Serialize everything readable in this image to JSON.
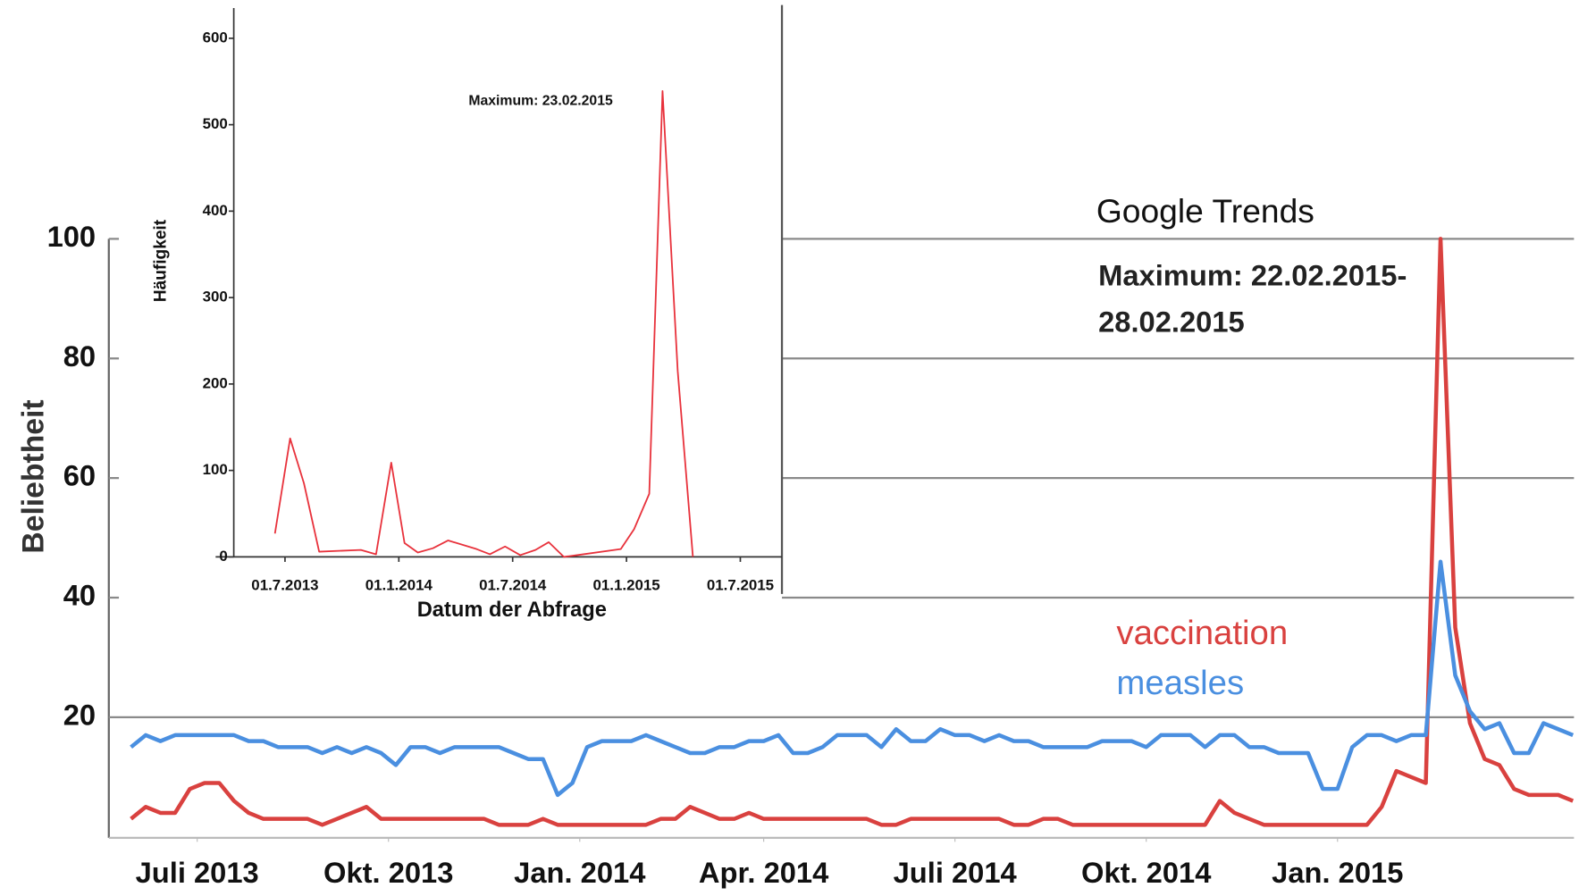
{
  "chart_data": [
    {
      "type": "line",
      "y_label": "Beliebtheit",
      "annotations": [
        "Google Trends",
        "Maximum: 22.02.2015-",
        "28.02.2015"
      ],
      "xlim": [
        0,
        98
      ],
      "xticks": [
        {
          "value": 4.5,
          "label": "Juli 2013"
        },
        {
          "value": 17.5,
          "label": "Okt. 2013"
        },
        {
          "value": 30.5,
          "label": "Jan. 2014"
        },
        {
          "value": 43,
          "label": "Apr. 2014"
        },
        {
          "value": 56,
          "label": "Juli 2014"
        },
        {
          "value": 69,
          "label": "Okt. 2014"
        },
        {
          "value": 82,
          "label": "Jan. 2015"
        }
      ],
      "ylim": [
        0,
        100
      ],
      "yticks": [
        20,
        40,
        60,
        80,
        100
      ],
      "grid": true,
      "series": [
        {
          "name": "vaccination",
          "color": "#d9413f",
          "values": [
            3,
            5,
            4,
            4,
            8,
            9,
            9,
            6,
            4,
            3,
            3,
            3,
            3,
            2,
            3,
            4,
            5,
            3,
            3,
            3,
            3,
            3,
            3,
            3,
            3,
            2,
            2,
            2,
            3,
            2,
            2,
            2,
            2,
            2,
            2,
            2,
            3,
            3,
            5,
            4,
            3,
            3,
            4,
            3,
            3,
            3,
            3,
            3,
            3,
            3,
            3,
            2,
            2,
            3,
            3,
            3,
            3,
            3,
            3,
            3,
            2,
            2,
            3,
            3,
            2,
            2,
            2,
            2,
            2,
            2,
            2,
            2,
            2,
            2,
            6,
            4,
            3,
            2,
            2,
            2,
            2,
            2,
            2,
            2,
            2,
            5,
            11,
            10,
            9,
            100,
            35,
            19,
            13,
            12,
            8,
            7,
            7,
            7,
            6
          ]
        },
        {
          "name": "measles",
          "color": "#4a8fe0",
          "values": [
            15,
            17,
            16,
            17,
            17,
            17,
            17,
            17,
            16,
            16,
            15,
            15,
            15,
            14,
            15,
            14,
            15,
            14,
            12,
            15,
            15,
            14,
            15,
            15,
            15,
            15,
            14,
            13,
            13,
            7,
            9,
            15,
            16,
            16,
            16,
            17,
            16,
            15,
            14,
            14,
            15,
            15,
            16,
            16,
            17,
            14,
            14,
            15,
            17,
            17,
            17,
            15,
            18,
            16,
            16,
            18,
            17,
            17,
            16,
            17,
            16,
            16,
            15,
            15,
            15,
            15,
            16,
            16,
            16,
            15,
            17,
            17,
            17,
            15,
            17,
            17,
            15,
            15,
            14,
            14,
            14,
            8,
            8,
            15,
            17,
            17,
            16,
            17,
            17,
            46,
            27,
            21,
            18,
            19,
            14,
            14,
            19,
            18,
            17
          ]
        }
      ]
    },
    {
      "type": "line",
      "x_label": "Datum der Abfrage",
      "y_label": "Häufigkeit",
      "annotations": [
        "Maximum: 23.02.2015"
      ],
      "x": [
        -0.53,
        0.27,
        1.0,
        1.8,
        4.0,
        4.8,
        5.6,
        6.3,
        7.0,
        7.8,
        8.6,
        10.1,
        10.8,
        11.6,
        12.4,
        13.2,
        13.9,
        14.7,
        15.4,
        17.7,
        18.4,
        19.2,
        19.9,
        20.7,
        21.5
      ],
      "xlim": [
        -2.7,
        26.3
      ],
      "xticks": [
        {
          "value": 0,
          "label": "01.7.2013"
        },
        {
          "value": 6,
          "label": "01.1.2014"
        },
        {
          "value": 12,
          "label": "01.7.2014"
        },
        {
          "value": 18,
          "label": "01.1.2015"
        },
        {
          "value": 24,
          "label": "01.7.2015"
        }
      ],
      "ylim": [
        0,
        635
      ],
      "yticks": [
        0,
        100,
        200,
        300,
        400,
        500,
        600
      ],
      "color": "#e8323c",
      "values": [
        27,
        137,
        85,
        6,
        8,
        3,
        109,
        16,
        5,
        10,
        19,
        9,
        3,
        12,
        2,
        8,
        17,
        0,
        2,
        9,
        32,
        73,
        539,
        215,
        0
      ]
    }
  ]
}
